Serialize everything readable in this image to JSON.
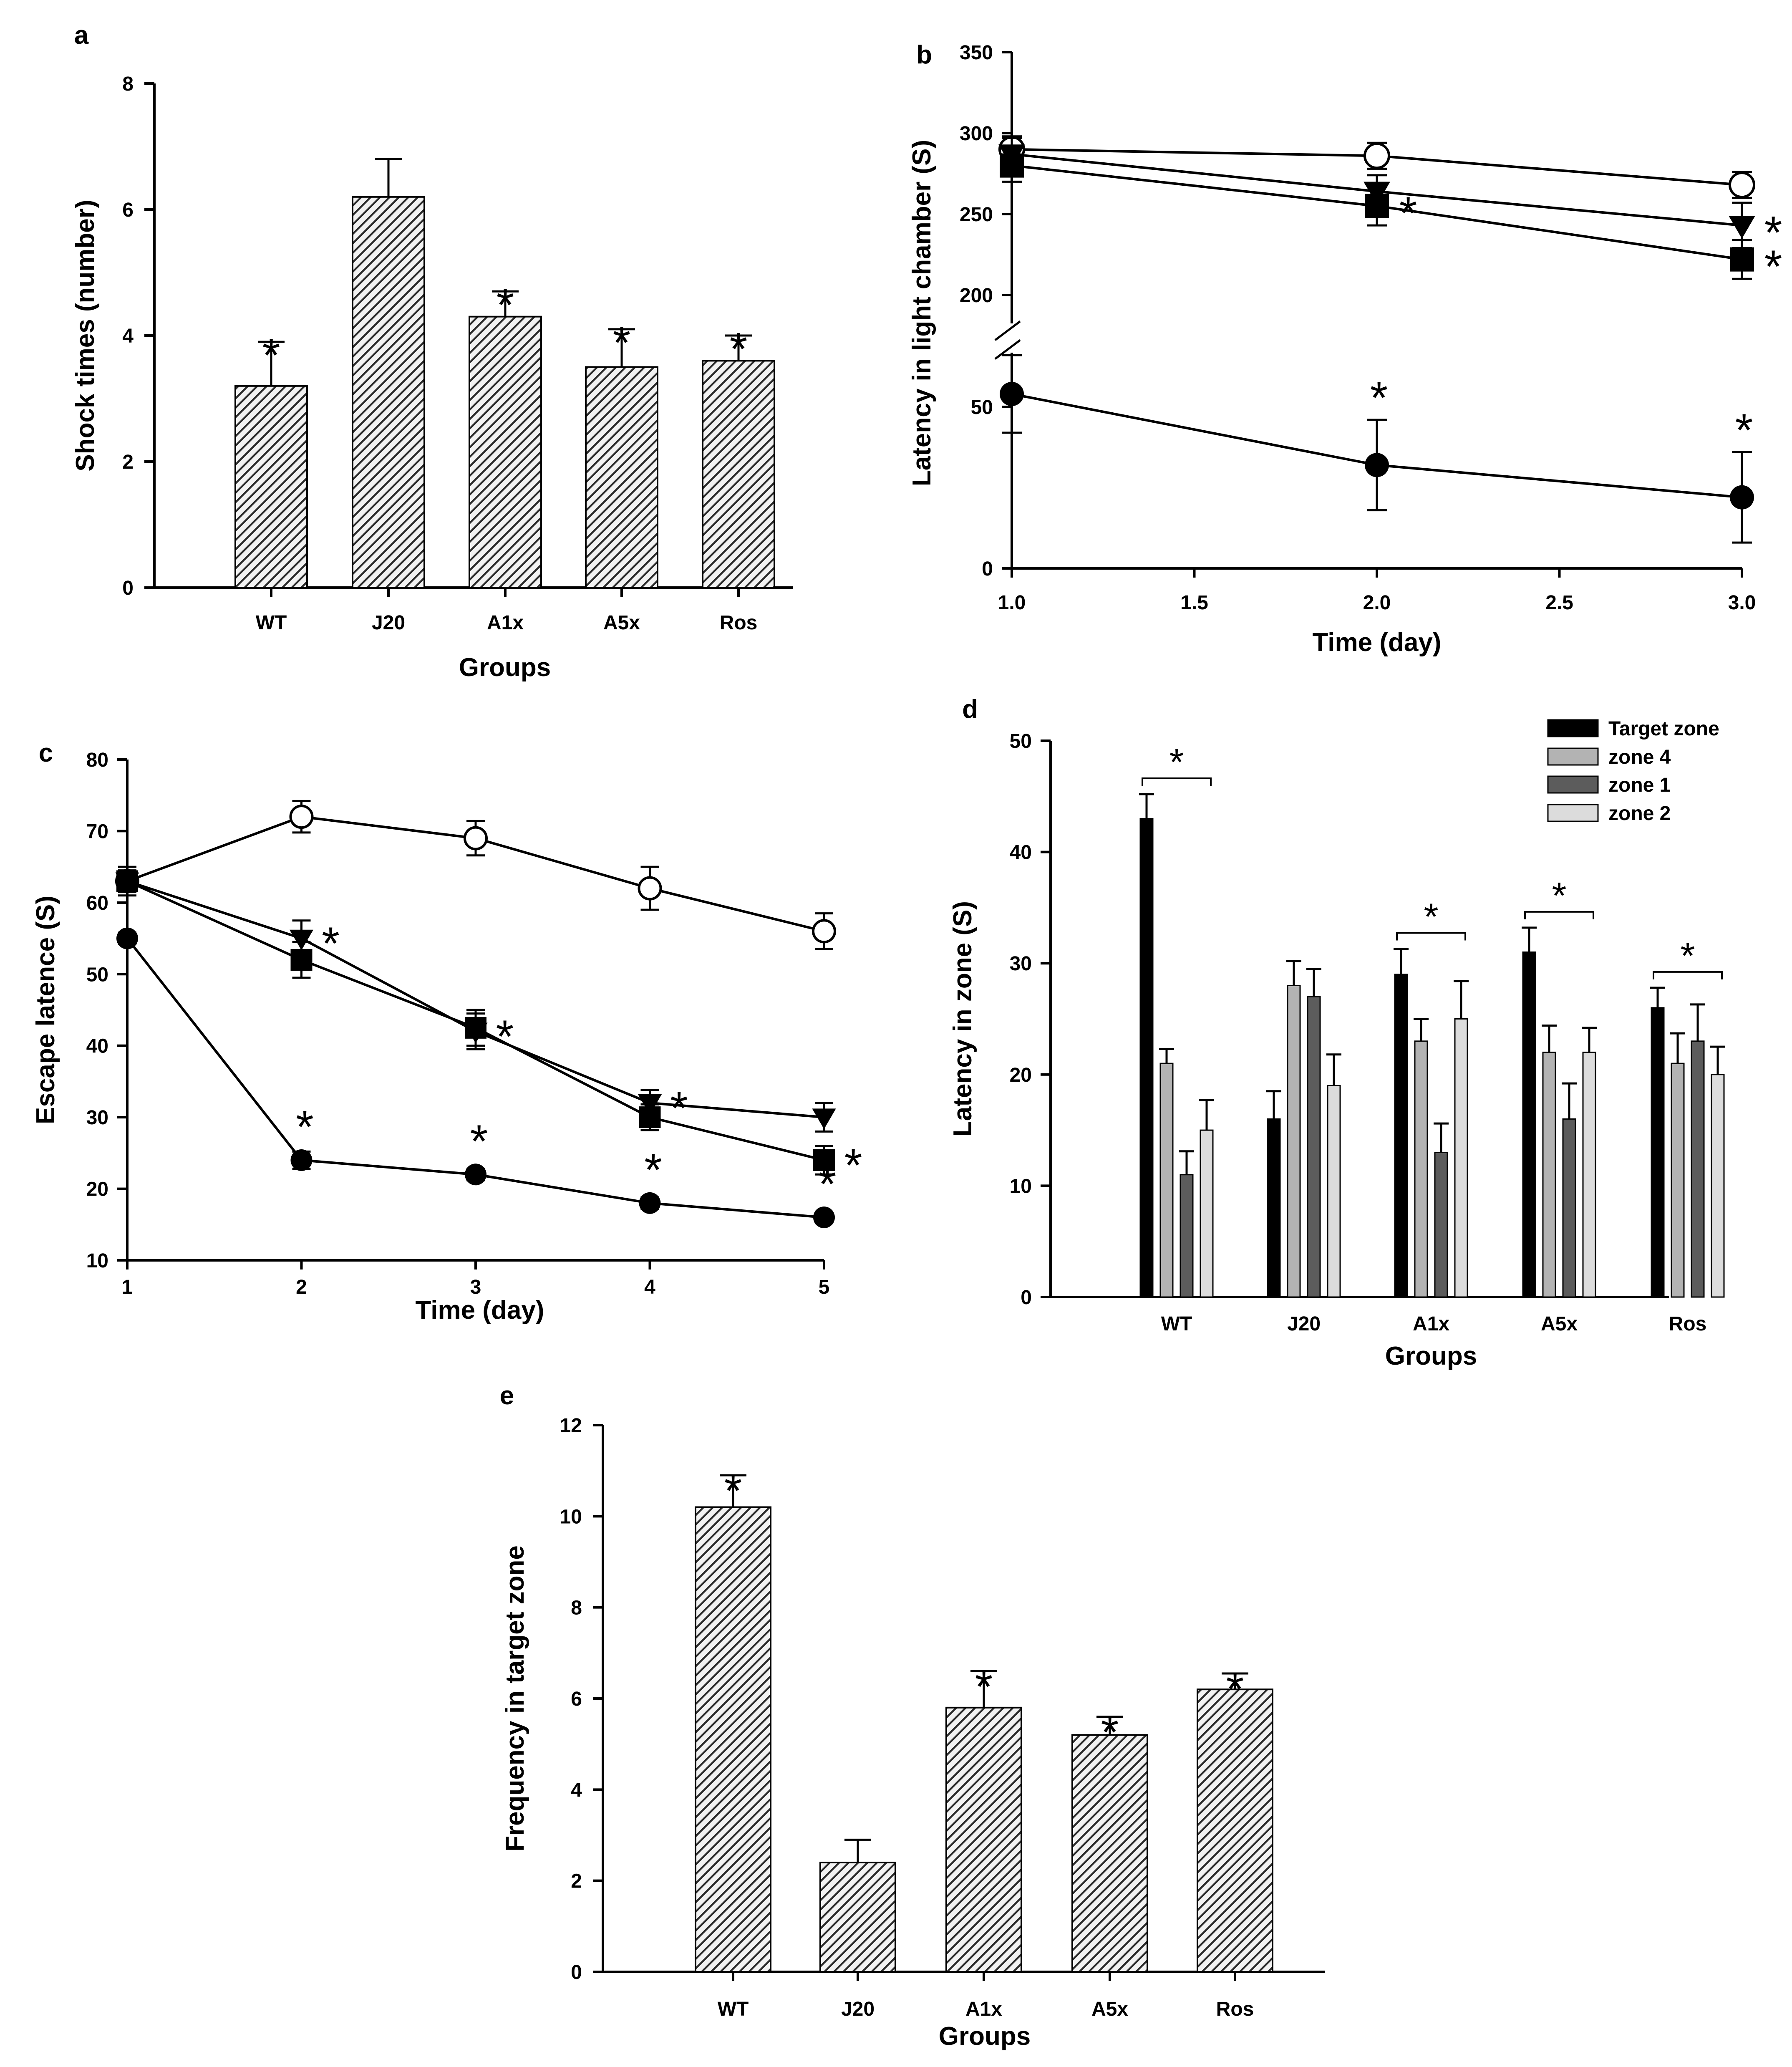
{
  "chart_data": [
    {
      "panel": "a",
      "type": "bar",
      "xlabel": "Groups",
      "ylabel": "Shock times (number)",
      "ylim": [
        0,
        8
      ],
      "yticks": [
        0,
        2,
        4,
        6,
        8
      ],
      "categories": [
        "WT",
        "J20",
        "A1x",
        "A5x",
        "Ros"
      ],
      "values": [
        3.2,
        6.2,
        4.3,
        3.5,
        3.6
      ],
      "errors": [
        0.7,
        0.6,
        0.4,
        0.6,
        0.4
      ],
      "significance": [
        "*",
        "",
        "*",
        "*",
        "*"
      ]
    },
    {
      "panel": "b",
      "type": "line",
      "xlabel": "Time (day)",
      "ylabel": "Latency in light chamber (S)",
      "xlim": [
        1.0,
        3.0
      ],
      "xticks": [
        "1.0",
        "1.5",
        "2.0",
        "2.5",
        "3.0"
      ],
      "yticks_lower": [
        0,
        50
      ],
      "yticks_upper": [
        200,
        250,
        300,
        350
      ],
      "axis_break": "between 75 and 200",
      "x": [
        1,
        2,
        3
      ],
      "series": [
        {
          "marker": "open-circle",
          "values": [
            290,
            286,
            268
          ],
          "errors": [
            8,
            8,
            8
          ],
          "significance": [
            "",
            "",
            ""
          ]
        },
        {
          "marker": "filled-triangle-down",
          "values": [
            287,
            264,
            243
          ],
          "errors": [
            10,
            10,
            14
          ],
          "significance": [
            "",
            "",
            "*"
          ]
        },
        {
          "marker": "filled-square",
          "values": [
            280,
            255,
            222
          ],
          "errors": [
            10,
            12,
            12
          ],
          "significance": [
            "",
            "*",
            "*"
          ]
        },
        {
          "marker": "filled-circle",
          "values": [
            54,
            32,
            22
          ],
          "errors": [
            12,
            14,
            14
          ],
          "significance": [
            "",
            "*",
            "*"
          ]
        }
      ]
    },
    {
      "panel": "c",
      "type": "line",
      "xlabel": "Time (day)",
      "ylabel": "Escape latence (S)",
      "ylim": [
        10,
        80
      ],
      "yticks": [
        10,
        20,
        30,
        40,
        50,
        60,
        70,
        80
      ],
      "x": [
        1,
        2,
        3,
        4,
        5
      ],
      "series": [
        {
          "marker": "open-circle",
          "values": [
            63,
            72,
            69,
            62,
            56
          ],
          "errors": [
            2,
            2.2,
            2.4,
            3,
            2.5
          ],
          "significance": [
            "",
            "",
            "",
            "",
            ""
          ]
        },
        {
          "marker": "filled-triangle-down",
          "values": [
            63,
            55,
            42,
            32,
            30
          ],
          "errors": [
            1.5,
            2.5,
            2.5,
            1.8,
            2
          ],
          "significance": [
            "",
            "*",
            "*",
            "*",
            ""
          ]
        },
        {
          "marker": "filled-square",
          "values": [
            63,
            52,
            42.5,
            30,
            24
          ],
          "errors": [
            1.5,
            2.5,
            2.5,
            1.8,
            2
          ],
          "significance": [
            "",
            "",
            "",
            "",
            "*"
          ]
        },
        {
          "marker": "filled-circle",
          "values": [
            55,
            24,
            22,
            18,
            16
          ],
          "errors": [
            0.8,
            1.2,
            0.8,
            0.8,
            0.8
          ],
          "significance": [
            "",
            "*",
            "*",
            "*",
            "*"
          ]
        }
      ]
    },
    {
      "panel": "d",
      "type": "bar",
      "xlabel": "Groups",
      "ylabel": "Latency in zone (S)",
      "ylim": [
        0,
        50
      ],
      "yticks": [
        0,
        10,
        20,
        30,
        40,
        50
      ],
      "categories": [
        "WT",
        "J20",
        "A1x",
        "A5x",
        "Ros"
      ],
      "legend": [
        "Target zone",
        "zone 4",
        "zone 1",
        "zone 2"
      ],
      "series_colors": [
        "#000000",
        "#b3b3b3",
        "#5c5c5c",
        "#dcdcdc"
      ],
      "series": [
        {
          "name": "Target zone",
          "values": [
            43,
            16,
            29,
            31,
            26
          ],
          "errors": [
            2.2,
            2.5,
            2.3,
            2.2,
            1.8
          ]
        },
        {
          "name": "zone 4",
          "values": [
            21,
            28,
            23,
            22,
            21
          ],
          "errors": [
            1.3,
            2.2,
            2,
            2.4,
            2.7
          ]
        },
        {
          "name": "zone 1",
          "values": [
            11,
            27,
            13,
            16,
            23
          ],
          "errors": [
            2.1,
            2.5,
            2.6,
            3.2,
            3.3
          ]
        },
        {
          "name": "zone 2",
          "values": [
            15,
            19,
            25,
            22,
            20
          ],
          "errors": [
            2.7,
            2.8,
            3.4,
            2.2,
            2.5
          ]
        }
      ],
      "significance": [
        "*",
        "",
        "*",
        "*",
        "*"
      ]
    },
    {
      "panel": "e",
      "type": "bar",
      "xlabel": "Groups",
      "ylabel": "Frequency in target zone",
      "ylim": [
        0,
        12
      ],
      "yticks": [
        0,
        2,
        4,
        6,
        8,
        10,
        12
      ],
      "categories": [
        "WT",
        "J20",
        "A1x",
        "A5x",
        "Ros"
      ],
      "values": [
        10.2,
        2.4,
        5.8,
        5.2,
        6.2
      ],
      "errors": [
        0.7,
        0.5,
        0.8,
        0.4,
        0.35
      ],
      "significance": [
        "*",
        "",
        "*",
        "*",
        "*"
      ]
    }
  ]
}
